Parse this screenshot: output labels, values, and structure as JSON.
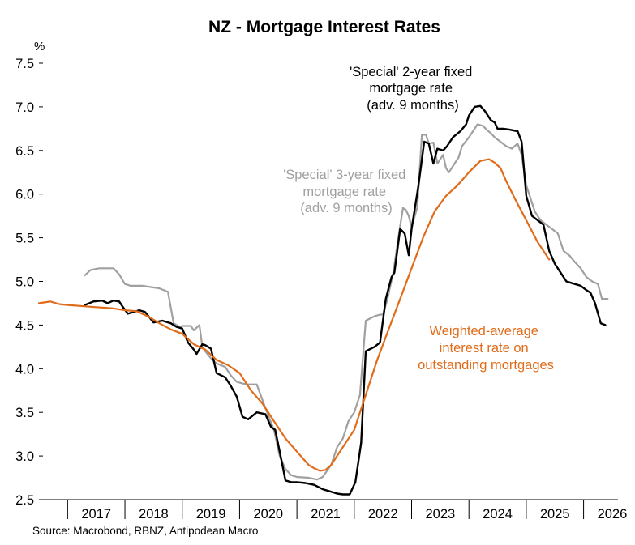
{
  "chart_data": {
    "type": "line",
    "title": "NZ - Mortgage Interest Rates",
    "ylabel": "%",
    "ylim": [
      2.5,
      7.5
    ],
    "xlim": [
      2016.5,
      2026.6
    ],
    "yticks": [
      "2.5",
      "3.0",
      "3.5",
      "4.0",
      "4.5",
      "5.0",
      "5.5",
      "6.0",
      "6.5",
      "7.0",
      "7.5"
    ],
    "xticks": [
      "2017",
      "2018",
      "2019",
      "2020",
      "2021",
      "2022",
      "2023",
      "2024",
      "2025",
      "2026"
    ],
    "grid": false,
    "legend": "none",
    "source": "Source: Macrobond, RBNZ, Antipodean Macro",
    "colors": {
      "two_year": "#000000",
      "three_year": "#a0a0a0",
      "weighted": "#e06c1a"
    },
    "annotations": {
      "two_year": [
        "'Special' 2-year fixed",
        "mortgage rate",
        "(adv. 9 months)"
      ],
      "three_year": [
        "'Special' 3-year fixed",
        "mortgage rate",
        "(adv. 9 months)"
      ],
      "weighted": [
        "Weighted-average",
        "interest rate on",
        "outstanding mortgages"
      ]
    },
    "series": [
      {
        "key": "three_year",
        "x": [
          2017.3,
          2017.4,
          2017.55,
          2017.8,
          2017.9,
          2018.0,
          2018.1,
          2018.3,
          2018.5,
          2018.6,
          2018.75,
          2018.85,
          2018.95,
          2019.0,
          2019.15,
          2019.2,
          2019.3,
          2019.35,
          2019.4,
          2019.5,
          2019.6,
          2019.75,
          2019.85,
          2019.95,
          2020.05,
          2020.15,
          2020.3,
          2020.45,
          2020.6,
          2020.7,
          2020.8,
          2020.9,
          2021.0,
          2021.2,
          2021.35,
          2021.45,
          2021.6,
          2021.7,
          2021.8,
          2021.9,
          2022.0,
          2022.1,
          2022.2,
          2022.35,
          2022.45,
          2022.5,
          2022.58,
          2022.68,
          2022.78,
          2022.85,
          2022.9,
          2022.95,
          2023.0,
          2023.1,
          2023.18,
          2023.25,
          2023.3,
          2023.38,
          2023.45,
          2023.55,
          2023.6,
          2023.65,
          2023.75,
          2023.82,
          2023.88,
          2024.0,
          2024.15,
          2024.25,
          2024.32,
          2024.38,
          2024.45,
          2024.55,
          2024.65,
          2024.75,
          2024.85,
          2024.92,
          2025.0,
          2025.15,
          2025.25,
          2025.35,
          2025.45,
          2025.55,
          2025.65,
          2025.75,
          2025.85,
          2025.95,
          2026.05,
          2026.15,
          2026.25,
          2026.32,
          2026.42
        ],
        "values": [
          5.07,
          5.13,
          5.15,
          5.15,
          5.08,
          4.97,
          4.95,
          4.95,
          4.93,
          4.92,
          4.88,
          4.52,
          4.48,
          4.49,
          4.49,
          4.44,
          4.5,
          4.25,
          4.2,
          4.12,
          4.06,
          4.02,
          3.92,
          3.85,
          3.83,
          3.82,
          3.82,
          3.55,
          3.3,
          3.0,
          2.85,
          2.78,
          2.76,
          2.75,
          2.73,
          2.76,
          2.9,
          3.1,
          3.2,
          3.4,
          3.5,
          3.7,
          4.55,
          4.6,
          4.62,
          4.62,
          4.8,
          5.1,
          5.55,
          5.84,
          5.82,
          5.75,
          5.62,
          5.85,
          6.68,
          6.68,
          6.58,
          6.59,
          6.35,
          6.45,
          6.3,
          6.25,
          6.35,
          6.42,
          6.55,
          6.65,
          6.8,
          6.78,
          6.73,
          6.7,
          6.65,
          6.6,
          6.55,
          6.52,
          6.58,
          6.45,
          6.1,
          5.8,
          5.7,
          5.65,
          5.6,
          5.55,
          5.35,
          5.3,
          5.22,
          5.15,
          5.05,
          5.0,
          4.97,
          4.8,
          4.8
        ]
      },
      {
        "key": "two_year",
        "x": [
          2017.3,
          2017.45,
          2017.6,
          2017.7,
          2017.8,
          2017.9,
          2017.95,
          2018.05,
          2018.25,
          2018.35,
          2018.5,
          2018.65,
          2018.8,
          2018.9,
          2019.0,
          2019.1,
          2019.2,
          2019.25,
          2019.35,
          2019.4,
          2019.5,
          2019.6,
          2019.75,
          2019.85,
          2019.95,
          2020.05,
          2020.15,
          2020.3,
          2020.45,
          2020.55,
          2020.62,
          2020.7,
          2020.8,
          2020.9,
          2021.0,
          2021.15,
          2021.3,
          2021.45,
          2021.55,
          2021.7,
          2021.8,
          2021.92,
          2022.02,
          2022.12,
          2022.2,
          2022.35,
          2022.45,
          2022.55,
          2022.65,
          2022.7,
          2022.8,
          2022.88,
          2022.95,
          2023.0,
          2023.12,
          2023.22,
          2023.3,
          2023.38,
          2023.45,
          2023.55,
          2023.62,
          2023.72,
          2023.85,
          2023.95,
          2024.0,
          2024.1,
          2024.2,
          2024.28,
          2024.38,
          2024.45,
          2024.5,
          2024.6,
          2024.7,
          2024.85,
          2024.92,
          2025.0,
          2025.1,
          2025.2,
          2025.3,
          2025.4,
          2025.5,
          2025.6,
          2025.7,
          2025.8,
          2025.95,
          2026.05,
          2026.12,
          2026.2,
          2026.3,
          2026.38
        ],
        "values": [
          4.73,
          4.77,
          4.78,
          4.75,
          4.78,
          4.77,
          4.72,
          4.63,
          4.67,
          4.65,
          4.53,
          4.55,
          4.52,
          4.48,
          4.46,
          4.3,
          4.22,
          4.17,
          4.28,
          4.27,
          4.23,
          3.95,
          3.9,
          3.8,
          3.68,
          3.45,
          3.42,
          3.5,
          3.48,
          3.33,
          3.3,
          3.05,
          2.72,
          2.7,
          2.7,
          2.69,
          2.67,
          2.62,
          2.6,
          2.57,
          2.56,
          2.56,
          2.7,
          3.15,
          4.2,
          4.25,
          4.3,
          4.8,
          5.05,
          5.1,
          5.6,
          5.55,
          5.3,
          5.6,
          6.1,
          6.6,
          6.58,
          6.35,
          6.52,
          6.5,
          6.55,
          6.65,
          6.72,
          6.8,
          6.9,
          7.0,
          7.01,
          6.95,
          6.85,
          6.82,
          6.75,
          6.75,
          6.74,
          6.72,
          6.6,
          5.98,
          5.75,
          5.7,
          5.65,
          5.35,
          5.2,
          5.1,
          5.0,
          4.98,
          4.95,
          4.9,
          4.87,
          4.75,
          4.52,
          4.5
        ]
      },
      {
        "key": "weighted",
        "x": [
          2016.5,
          2016.6,
          2016.7,
          2016.85,
          2017.0,
          2017.2,
          2017.4,
          2017.6,
          2017.8,
          2018.0,
          2018.2,
          2018.4,
          2018.6,
          2018.8,
          2019.0,
          2019.2,
          2019.4,
          2019.6,
          2019.8,
          2020.0,
          2020.2,
          2020.4,
          2020.6,
          2020.8,
          2021.0,
          2021.2,
          2021.3,
          2021.4,
          2021.5,
          2021.6,
          2021.8,
          2022.0,
          2022.2,
          2022.4,
          2022.6,
          2022.8,
          2023.0,
          2023.2,
          2023.4,
          2023.6,
          2023.8,
          2024.0,
          2024.2,
          2024.35,
          2024.45,
          2024.55,
          2024.65,
          2024.8,
          2025.0,
          2025.2,
          2025.4
        ],
        "values": [
          4.75,
          4.76,
          4.77,
          4.74,
          4.73,
          4.72,
          4.71,
          4.7,
          4.69,
          4.67,
          4.66,
          4.6,
          4.52,
          4.45,
          4.4,
          4.28,
          4.22,
          4.1,
          4.04,
          3.95,
          3.75,
          3.6,
          3.4,
          3.2,
          3.05,
          2.9,
          2.86,
          2.83,
          2.84,
          2.9,
          3.1,
          3.3,
          3.7,
          4.1,
          4.45,
          4.8,
          5.15,
          5.5,
          5.8,
          5.98,
          6.1,
          6.25,
          6.38,
          6.4,
          6.36,
          6.3,
          6.15,
          5.95,
          5.7,
          5.45,
          5.25
        ]
      }
    ]
  }
}
